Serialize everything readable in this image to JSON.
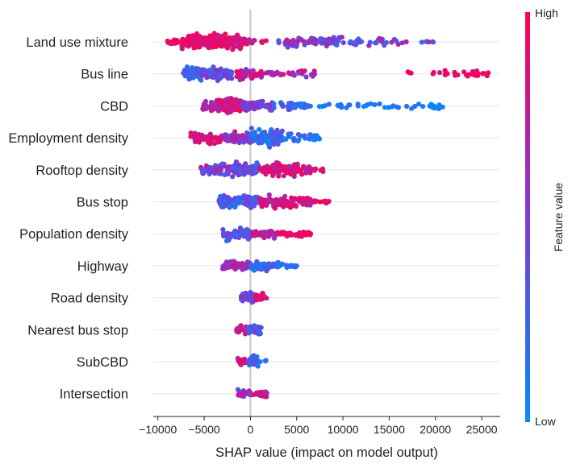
{
  "chart_data": {
    "type": "scatter",
    "subtype": "shap-beeswarm",
    "title": "",
    "xlabel": "SHAP value (impact on model output)",
    "ylabel": "",
    "xlim": [
      -10500,
      27000
    ],
    "xticks": [
      -10000,
      -5000,
      0,
      5000,
      10000,
      15000,
      20000,
      25000
    ],
    "grid": false,
    "colorbar": {
      "label": "Feature value",
      "high_label": "High",
      "low_label": "Low",
      "low_color": "#008bfb",
      "mid_color": "#7c3ad8",
      "high_color": "#ff0052"
    },
    "features": [
      {
        "name": "Land use mixture",
        "clusters": [
          {
            "min": -9000,
            "max": -6500,
            "n": 25,
            "lo": 0.75,
            "hi": 1.0,
            "spread": 5
          },
          {
            "min": -7500,
            "max": -1000,
            "n": 180,
            "lo": 0.78,
            "hi": 1.0,
            "spread": 14
          },
          {
            "min": -1000,
            "max": 500,
            "n": 25,
            "lo": 0.65,
            "hi": 0.95,
            "spread": 7
          },
          {
            "min": 500,
            "max": 2000,
            "n": 4,
            "lo": 0.75,
            "hi": 1.0,
            "spread": 3
          },
          {
            "min": 3000,
            "max": 10000,
            "n": 65,
            "lo": 0.25,
            "hi": 0.75,
            "spread": 9
          },
          {
            "min": 10000,
            "max": 16000,
            "n": 28,
            "lo": 0.1,
            "hi": 0.7,
            "spread": 6
          },
          {
            "min": 16000,
            "max": 20000,
            "n": 8,
            "lo": 0.2,
            "hi": 0.75,
            "spread": 3
          }
        ]
      },
      {
        "name": "Bus line",
        "clusters": [
          {
            "min": -7300,
            "max": -5200,
            "n": 60,
            "lo": 0.12,
            "hi": 0.4,
            "spread": 12
          },
          {
            "min": -5200,
            "max": -2000,
            "n": 65,
            "lo": 0.2,
            "hi": 0.6,
            "spread": 11
          },
          {
            "min": -1500,
            "max": 1500,
            "n": 45,
            "lo": 0.5,
            "hi": 1.0,
            "spread": 10
          },
          {
            "min": 1500,
            "max": 7000,
            "n": 30,
            "lo": 0.5,
            "hi": 0.9,
            "spread": 6
          },
          {
            "min": 17000,
            "max": 21000,
            "n": 6,
            "lo": 0.8,
            "hi": 1.0,
            "spread": 3
          },
          {
            "min": 21000,
            "max": 26000,
            "n": 25,
            "lo": 0.85,
            "hi": 1.0,
            "spread": 5
          }
        ]
      },
      {
        "name": "CBD",
        "clusters": [
          {
            "min": -5200,
            "max": -3500,
            "n": 35,
            "lo": 0.5,
            "hi": 0.9,
            "spread": 9
          },
          {
            "min": -3500,
            "max": -1000,
            "n": 90,
            "lo": 0.55,
            "hi": 1.0,
            "spread": 13
          },
          {
            "min": -1000,
            "max": 2500,
            "n": 55,
            "lo": 0.3,
            "hi": 0.75,
            "spread": 9
          },
          {
            "min": 2500,
            "max": 6000,
            "n": 35,
            "lo": 0.0,
            "hi": 0.45,
            "spread": 6
          },
          {
            "min": 6000,
            "max": 11000,
            "n": 18,
            "lo": 0.0,
            "hi": 0.25,
            "spread": 4
          },
          {
            "min": 11500,
            "max": 21000,
            "n": 30,
            "lo": 0.0,
            "hi": 0.2,
            "spread": 5
          }
        ]
      },
      {
        "name": "Employment density",
        "clusters": [
          {
            "min": -6500,
            "max": -3000,
            "n": 60,
            "lo": 0.7,
            "hi": 1.0,
            "spread": 9
          },
          {
            "min": -3000,
            "max": 0,
            "n": 70,
            "lo": 0.4,
            "hi": 0.85,
            "spread": 11
          },
          {
            "min": 0,
            "max": 3500,
            "n": 110,
            "lo": 0.0,
            "hi": 0.4,
            "spread": 14
          },
          {
            "min": 3500,
            "max": 7500,
            "n": 30,
            "lo": 0.0,
            "hi": 0.35,
            "spread": 6
          }
        ]
      },
      {
        "name": "Rooftop density",
        "clusters": [
          {
            "min": -5500,
            "max": -2000,
            "n": 55,
            "lo": 0.15,
            "hi": 0.75,
            "spread": 9
          },
          {
            "min": -2000,
            "max": 1000,
            "n": 65,
            "lo": 0.2,
            "hi": 0.7,
            "spread": 11
          },
          {
            "min": 1000,
            "max": 6500,
            "n": 110,
            "lo": 0.65,
            "hi": 1.0,
            "spread": 10
          },
          {
            "min": 6500,
            "max": 8000,
            "n": 8,
            "lo": 0.75,
            "hi": 1.0,
            "spread": 3
          }
        ]
      },
      {
        "name": "Bus stop",
        "clusters": [
          {
            "min": -3500,
            "max": -500,
            "n": 75,
            "lo": 0.1,
            "hi": 0.45,
            "spread": 11
          },
          {
            "min": -500,
            "max": 1000,
            "n": 40,
            "lo": 0.2,
            "hi": 0.6,
            "spread": 9
          },
          {
            "min": 1000,
            "max": 6500,
            "n": 90,
            "lo": 0.6,
            "hi": 1.0,
            "spread": 9
          },
          {
            "min": 6500,
            "max": 8500,
            "n": 12,
            "lo": 0.75,
            "hi": 1.0,
            "spread": 3
          }
        ]
      },
      {
        "name": "Population density",
        "clusters": [
          {
            "min": -3000,
            "max": 0,
            "n": 55,
            "lo": 0.15,
            "hi": 0.5,
            "spread": 10
          },
          {
            "min": 0,
            "max": 3000,
            "n": 45,
            "lo": 0.5,
            "hi": 0.85,
            "spread": 6
          },
          {
            "min": 3000,
            "max": 6500,
            "n": 35,
            "lo": 0.85,
            "hi": 1.0,
            "spread": 4
          }
        ]
      },
      {
        "name": "Highway",
        "clusters": [
          {
            "min": -3000,
            "max": 0,
            "n": 50,
            "lo": 0.45,
            "hi": 0.85,
            "spread": 9
          },
          {
            "min": 0,
            "max": 3000,
            "n": 55,
            "lo": 0.05,
            "hi": 0.4,
            "spread": 8
          },
          {
            "min": 3000,
            "max": 5000,
            "n": 12,
            "lo": 0.0,
            "hi": 0.3,
            "spread": 4
          }
        ]
      },
      {
        "name": "Road density",
        "clusters": [
          {
            "min": -1000,
            "max": 500,
            "n": 40,
            "lo": 0.25,
            "hi": 0.65,
            "spread": 9
          },
          {
            "min": 500,
            "max": 1800,
            "n": 20,
            "lo": 0.7,
            "hi": 1.0,
            "spread": 6
          }
        ]
      },
      {
        "name": "Nearest bus stop",
        "clusters": [
          {
            "min": -1500,
            "max": -300,
            "n": 22,
            "lo": 0.7,
            "hi": 1.0,
            "spread": 7
          },
          {
            "min": -300,
            "max": 1200,
            "n": 40,
            "lo": 0.1,
            "hi": 0.55,
            "spread": 9
          }
        ]
      },
      {
        "name": "SubCBD",
        "clusters": [
          {
            "min": -1600,
            "max": -300,
            "n": 22,
            "lo": 0.6,
            "hi": 1.0,
            "spread": 6
          },
          {
            "min": -300,
            "max": 900,
            "n": 35,
            "lo": 0.05,
            "hi": 0.5,
            "spread": 8
          },
          {
            "min": 900,
            "max": 1800,
            "n": 4,
            "lo": 0.0,
            "hi": 0.25,
            "spread": 3
          }
        ]
      },
      {
        "name": "Intersection",
        "clusters": [
          {
            "min": -1500,
            "max": 0,
            "n": 25,
            "lo": 0.3,
            "hi": 0.75,
            "spread": 6
          },
          {
            "min": 0,
            "max": 1800,
            "n": 25,
            "lo": 0.55,
            "hi": 0.95,
            "spread": 6
          }
        ]
      }
    ]
  }
}
